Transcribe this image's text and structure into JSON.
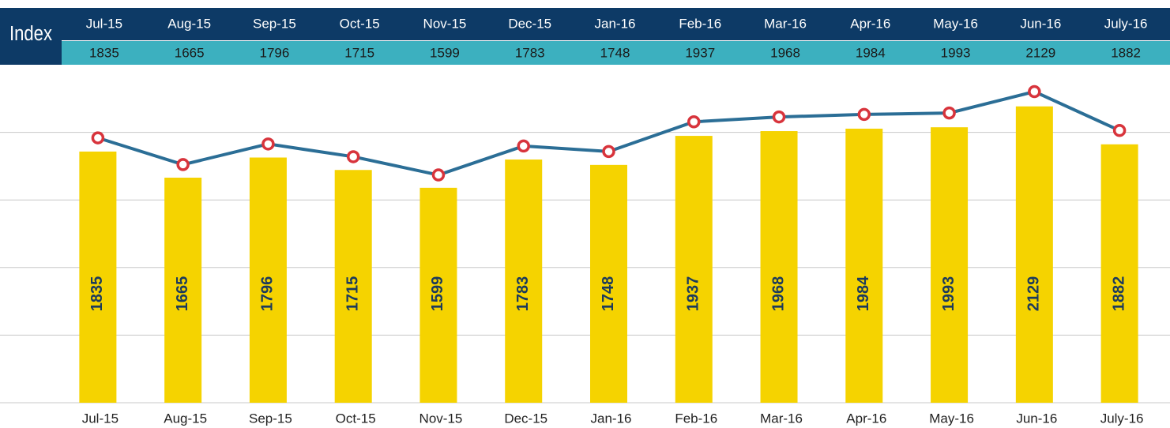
{
  "table_label": "Index",
  "chart_data": {
    "type": "combo",
    "categories": [
      "Jul-15",
      "Aug-15",
      "Sep-15",
      "Oct-15",
      "Nov-15",
      "Dec-15",
      "Jan-16",
      "Feb-16",
      "Mar-16",
      "Apr-16",
      "May-16",
      "Jun-16",
      "July-16"
    ],
    "values": [
      1835,
      1665,
      1796,
      1715,
      1599,
      1783,
      1748,
      1937,
      1968,
      1984,
      1993,
      2129,
      1882
    ],
    "bar_color": "#f5d300",
    "line_color": "#2b6e96",
    "marker_color": "#d8343c",
    "label_color": "#1b3a5c",
    "ylim": [
      200,
      2400
    ],
    "yticks": [
      200,
      640,
      1080,
      1520,
      1960,
      2400
    ],
    "y2lim": [
      150,
      2300
    ],
    "grid": true
  }
}
